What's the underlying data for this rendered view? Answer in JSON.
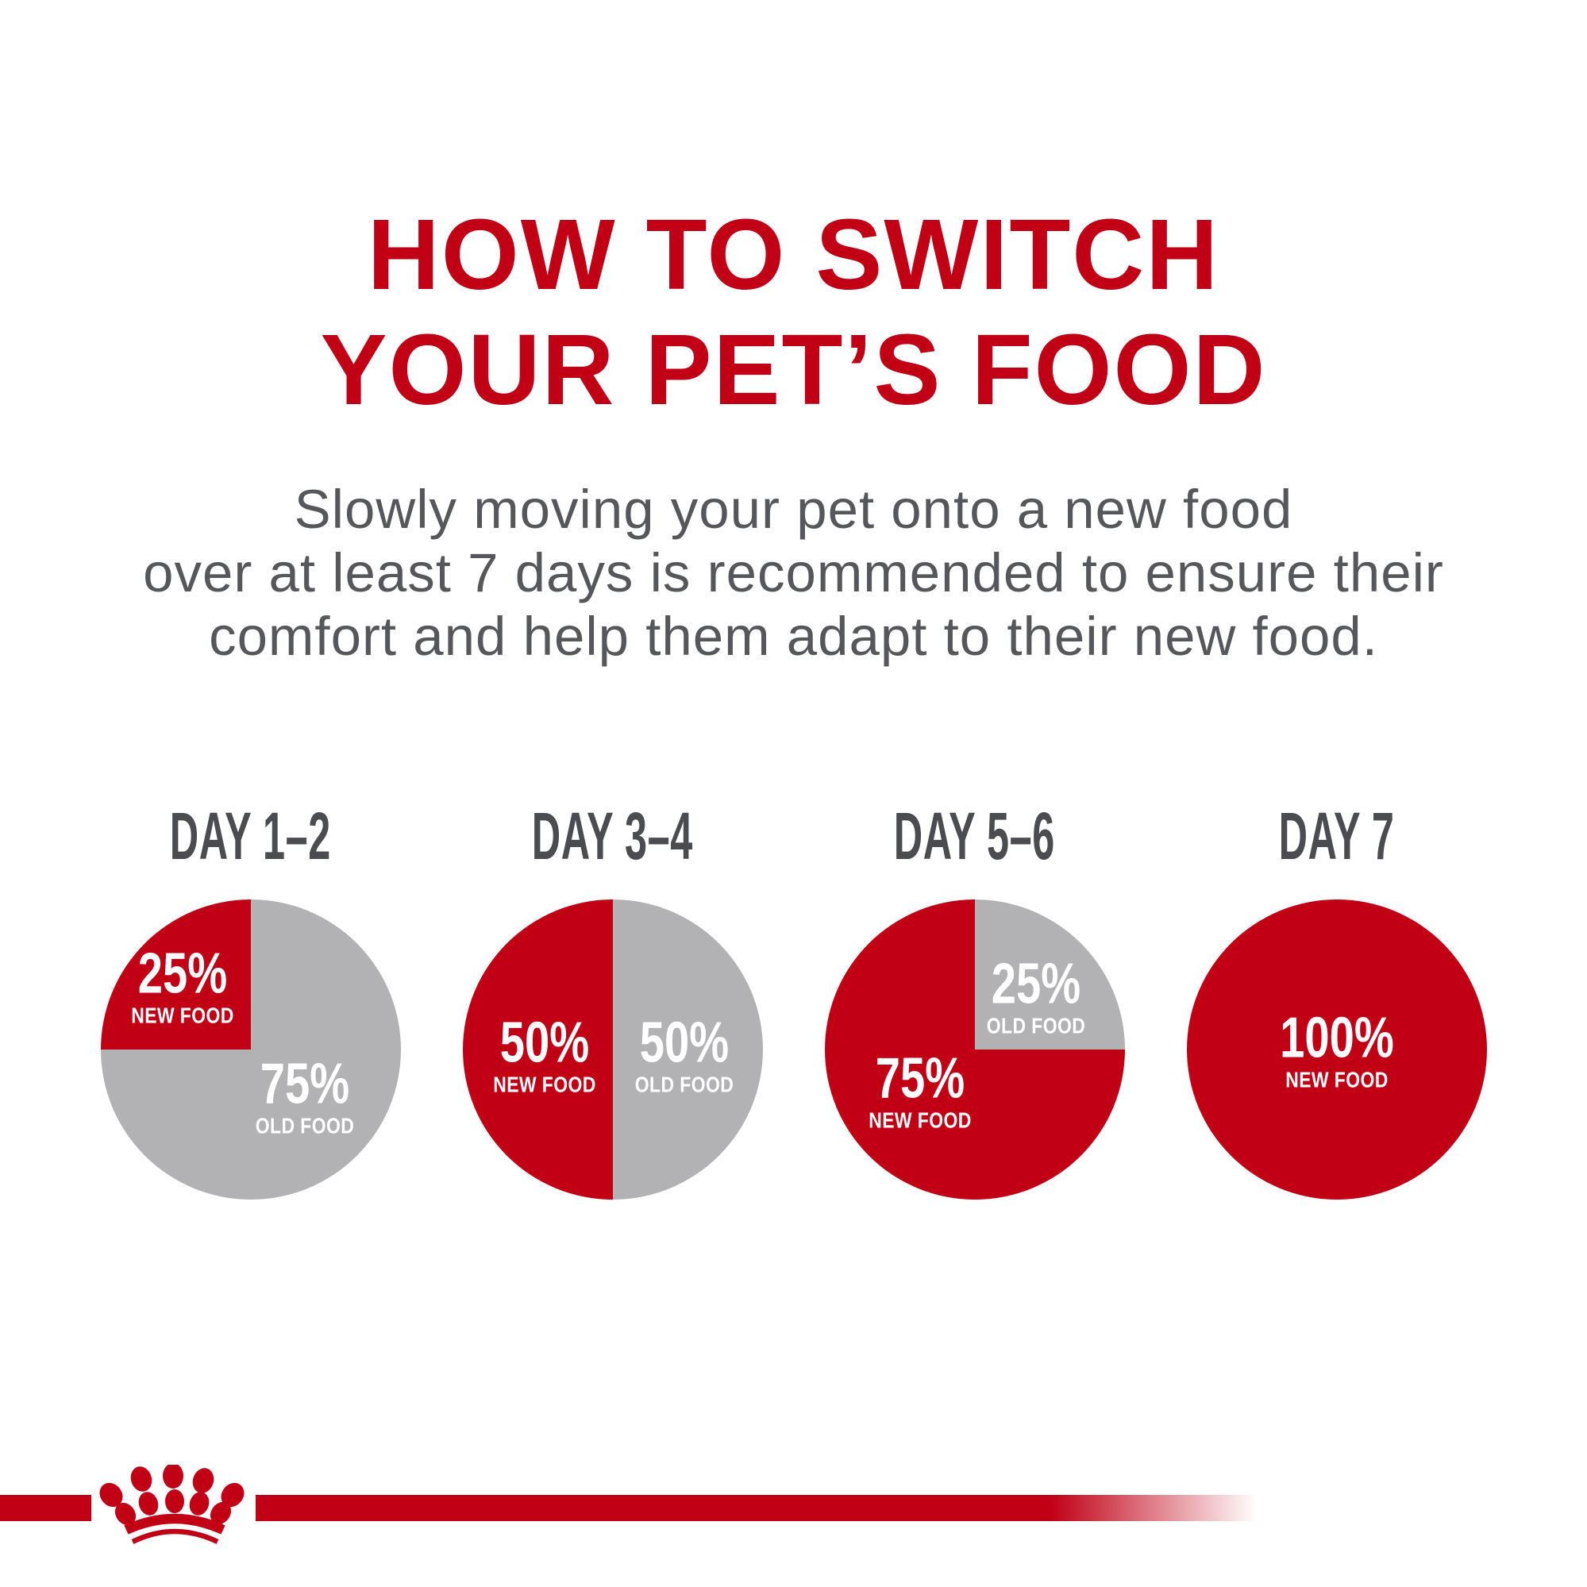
{
  "title": {
    "line1": "HOW TO SWITCH",
    "line2": "YOUR PET’S FOOD"
  },
  "subtitle": {
    "line1": "Slowly moving your pet onto a new food",
    "line2": "over at least 7 days is recommended to ensure their",
    "line3": "comfort and help them adapt to their new food."
  },
  "colors": {
    "brand_red": "#C10016",
    "pie_gray": "#B2B2B4",
    "title_red": "#C10016",
    "subtitle_gray": "#56575A",
    "day_label_gray": "#4B4C4F",
    "pie_label_white": "#FFFFFF"
  },
  "chart_data": [
    {
      "type": "pie",
      "title": "DAY 1–2",
      "start_angle": 270,
      "slices": [
        {
          "label": "NEW FOOD",
          "percent_text": "25%",
          "value": 25,
          "color": "brand_red",
          "label_pos": {
            "x": 27.5,
            "y": 29
          }
        },
        {
          "label": "OLD FOOD",
          "percent_text": "75%",
          "value": 75,
          "color": "pie_gray",
          "label_pos": {
            "x": 68,
            "y": 66
          }
        }
      ]
    },
    {
      "type": "pie",
      "title": "DAY 3–4",
      "start_angle": 180,
      "slices": [
        {
          "label": "NEW FOOD",
          "percent_text": "50%",
          "value": 50,
          "color": "brand_red",
          "label_pos": {
            "x": 27.5,
            "y": 52
          }
        },
        {
          "label": "OLD FOOD",
          "percent_text": "50%",
          "value": 50,
          "color": "pie_gray",
          "label_pos": {
            "x": 74,
            "y": 52
          }
        }
      ]
    },
    {
      "type": "pie",
      "title": "DAY 5–6",
      "start_angle": 90,
      "slices": [
        {
          "label": "NEW FOOD",
          "percent_text": "75%",
          "value": 75,
          "color": "brand_red",
          "label_pos": {
            "x": 32,
            "y": 64
          }
        },
        {
          "label": "OLD FOOD",
          "percent_text": "25%",
          "value": 25,
          "color": "pie_gray",
          "label_pos": {
            "x": 70.5,
            "y": 32.5
          }
        }
      ]
    },
    {
      "type": "pie",
      "title": "DAY 7",
      "start_angle": 0,
      "slices": [
        {
          "label": "NEW FOOD",
          "percent_text": "100%",
          "value": 100,
          "color": "brand_red",
          "label_pos": {
            "x": 50,
            "y": 50.5
          }
        }
      ]
    }
  ],
  "footer": {
    "logo_name": "royal-canin-crown-logo"
  }
}
